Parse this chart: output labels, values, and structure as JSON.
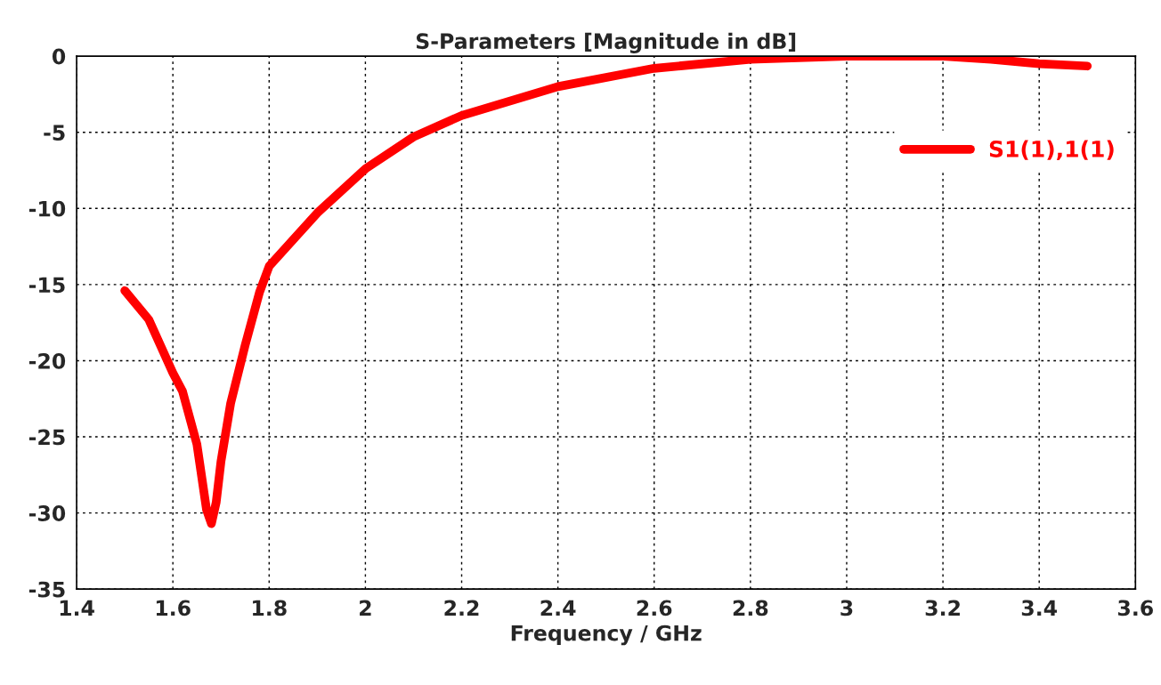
{
  "chart_data": {
    "type": "line",
    "title": "S-Parameters [Magnitude in dB]",
    "xlabel": "Frequency / GHz",
    "xlim": [
      1.4,
      3.6
    ],
    "xticks": [
      1.4,
      1.6,
      1.8,
      2,
      2.2,
      2.4,
      2.6,
      2.8,
      3,
      3.2,
      3.4,
      3.6
    ],
    "ylim": [
      -35,
      0
    ],
    "yticks": [
      -35,
      -30,
      -25,
      -20,
      -15,
      -10,
      -5,
      0
    ],
    "grid": true,
    "legend": "top right",
    "line_style": "solid",
    "marker": "none",
    "series": [
      {
        "name": "S1(1),1(1)",
        "color": "#ff0000",
        "x": [
          1.5,
          1.55,
          1.6,
          1.62,
          1.65,
          1.67,
          1.68,
          1.69,
          1.7,
          1.72,
          1.75,
          1.78,
          1.8,
          1.9,
          2.0,
          2.1,
          2.2,
          2.4,
          2.6,
          2.8,
          3.0,
          3.2,
          3.3,
          3.4,
          3.5
        ],
        "values": [
          -15.4,
          -17.3,
          -20.8,
          -22,
          -25.5,
          -29.8,
          -30.7,
          -29.3,
          -26.6,
          -22.8,
          -19,
          -15.5,
          -13.8,
          -10.3,
          -7.4,
          -5.3,
          -3.9,
          -2.0,
          -0.8,
          -0.2,
          0,
          0,
          -0.2,
          -0.5,
          -0.65
        ]
      }
    ]
  }
}
